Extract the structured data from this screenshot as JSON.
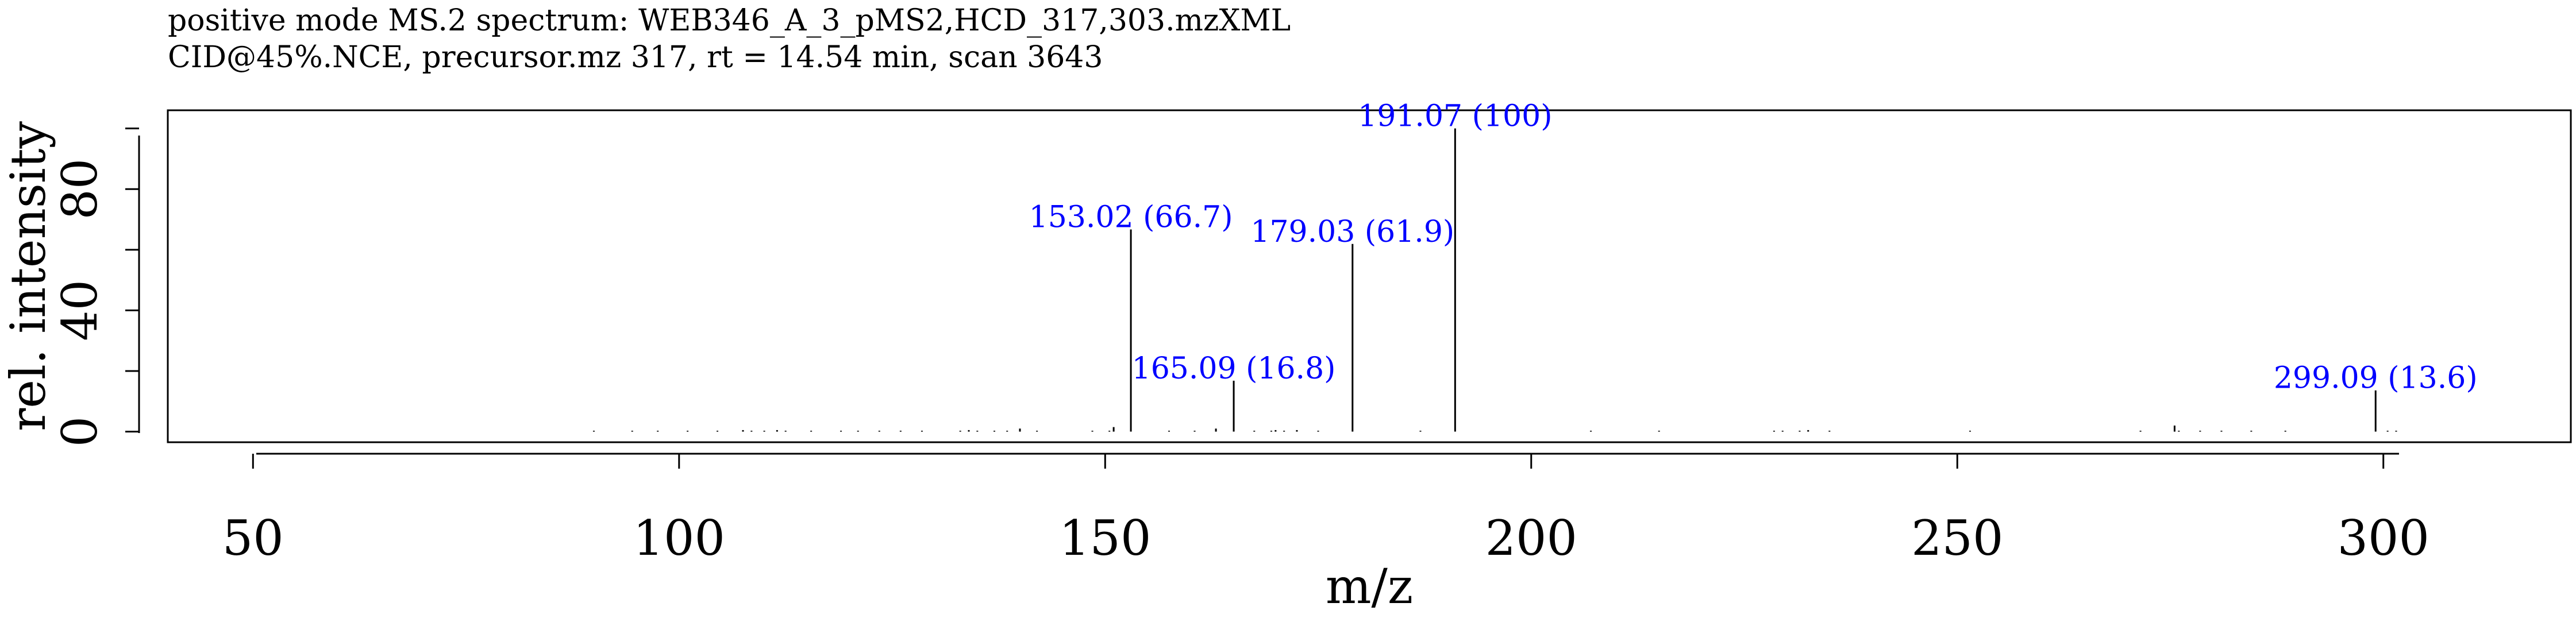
{
  "chart_data": {
    "type": "bar",
    "title": "positive mode MS.2 spectrum: WEB346_A_3_pMS2,HCD_317,303.mzXML",
    "subtitle": "CID@45%.NCE, precursor.mz 317, rt = 14.54 min, scan 3643",
    "xlabel": "m/z",
    "ylabel": "rel. intensity",
    "xlim": [
      40,
      322
    ],
    "ylim": [
      -3.5,
      106
    ],
    "x_ticks": [
      "50",
      "100",
      "150",
      "200",
      "250",
      "300"
    ],
    "y_ticks": [
      "0",
      "40",
      "80"
    ],
    "grid": false,
    "legend": "none",
    "peak_color": "#000000",
    "label_color": "#0000ff",
    "peaks": [
      {
        "mz": 90.0,
        "intensity": 0.3
      },
      {
        "mz": 94.5,
        "intensity": 0.3
      },
      {
        "mz": 97.5,
        "intensity": 0.3
      },
      {
        "mz": 101.0,
        "intensity": 0.3
      },
      {
        "mz": 104.5,
        "intensity": 0.3
      },
      {
        "mz": 107.5,
        "intensity": 0.5
      },
      {
        "mz": 108.5,
        "intensity": 0.3
      },
      {
        "mz": 110.0,
        "intensity": 0.3
      },
      {
        "mz": 111.5,
        "intensity": 0.5
      },
      {
        "mz": 112.5,
        "intensity": 0.3
      },
      {
        "mz": 115.5,
        "intensity": 0.3
      },
      {
        "mz": 119.0,
        "intensity": 0.3
      },
      {
        "mz": 121.0,
        "intensity": 0.3
      },
      {
        "mz": 123.5,
        "intensity": 0.3
      },
      {
        "mz": 126.0,
        "intensity": 0.3
      },
      {
        "mz": 128.5,
        "intensity": 0.3
      },
      {
        "mz": 133.0,
        "intensity": 0.3
      },
      {
        "mz": 134.0,
        "intensity": 0.5
      },
      {
        "mz": 135.0,
        "intensity": 0.3
      },
      {
        "mz": 137.0,
        "intensity": 0.3
      },
      {
        "mz": 138.5,
        "intensity": 0.3
      },
      {
        "mz": 140.0,
        "intensity": 1.0
      },
      {
        "mz": 142.0,
        "intensity": 0.3
      },
      {
        "mz": 148.5,
        "intensity": 0.3
      },
      {
        "mz": 150.5,
        "intensity": 0.3
      },
      {
        "mz": 151.0,
        "intensity": 1.5
      },
      {
        "mz": 153.02,
        "intensity": 66.7,
        "label": "153.02 (66.7)"
      },
      {
        "mz": 157.5,
        "intensity": 0.3
      },
      {
        "mz": 160.5,
        "intensity": 0.3
      },
      {
        "mz": 163.0,
        "intensity": 1.0
      },
      {
        "mz": 165.09,
        "intensity": 16.8,
        "label": "165.09 (16.8)"
      },
      {
        "mz": 167.5,
        "intensity": 0.3
      },
      {
        "mz": 169.5,
        "intensity": 0.3
      },
      {
        "mz": 170.0,
        "intensity": 0.5
      },
      {
        "mz": 171.0,
        "intensity": 0.3
      },
      {
        "mz": 172.5,
        "intensity": 0.5
      },
      {
        "mz": 175.0,
        "intensity": 0.3
      },
      {
        "mz": 179.03,
        "intensity": 61.9,
        "label": "179.03 (61.9)"
      },
      {
        "mz": 187.0,
        "intensity": 0.3
      },
      {
        "mz": 191.07,
        "intensity": 100,
        "label": "191.07 (100)"
      },
      {
        "mz": 207.0,
        "intensity": 0.3
      },
      {
        "mz": 215.0,
        "intensity": 0.3
      },
      {
        "mz": 228.5,
        "intensity": 0.3
      },
      {
        "mz": 229.5,
        "intensity": 0.3
      },
      {
        "mz": 231.5,
        "intensity": 0.3
      },
      {
        "mz": 232.5,
        "intensity": 0.5
      },
      {
        "mz": 235.0,
        "intensity": 0.3
      },
      {
        "mz": 251.5,
        "intensity": 0.3
      },
      {
        "mz": 271.5,
        "intensity": 0.3
      },
      {
        "mz": 275.5,
        "intensity": 2.0
      },
      {
        "mz": 276.0,
        "intensity": 0.3
      },
      {
        "mz": 278.5,
        "intensity": 0.3
      },
      {
        "mz": 281.0,
        "intensity": 0.3
      },
      {
        "mz": 284.5,
        "intensity": 0.3
      },
      {
        "mz": 288.5,
        "intensity": 0.3
      },
      {
        "mz": 299.09,
        "intensity": 13.6,
        "label": "299.09 (13.6)"
      },
      {
        "mz": 300.5,
        "intensity": 0.3
      },
      {
        "mz": 301.5,
        "intensity": 0.3
      }
    ]
  }
}
